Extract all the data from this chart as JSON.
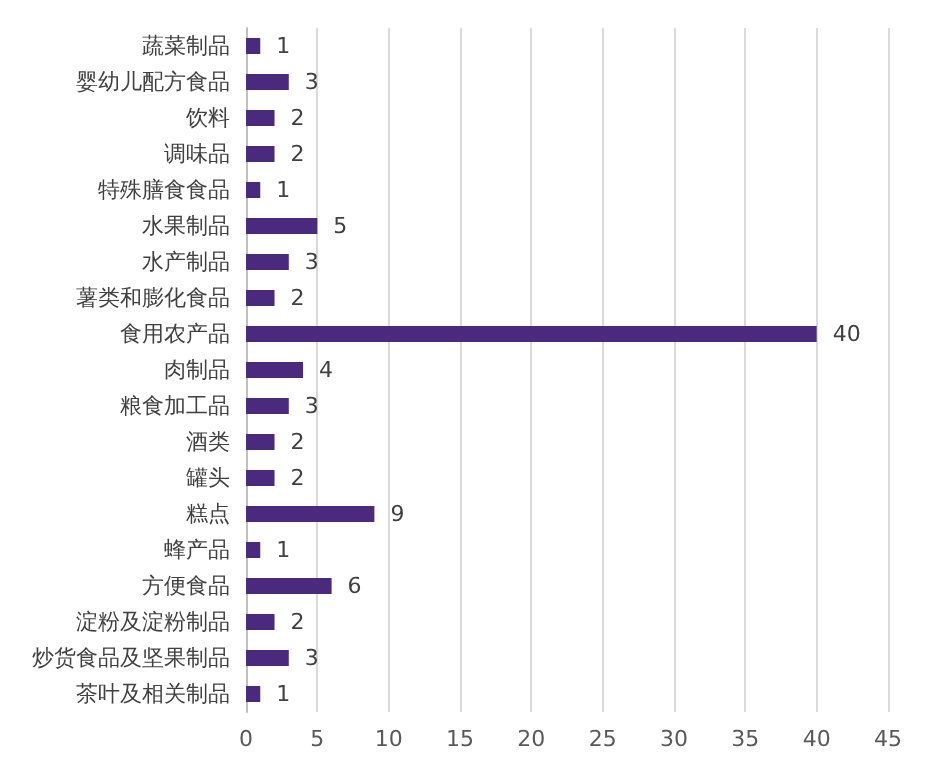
{
  "chart_data": {
    "type": "bar",
    "orientation": "horizontal",
    "categories": [
      "蔬菜制品",
      "婴幼儿配方食品",
      "饮料",
      "调味品",
      "特殊膳食食品",
      "水果制品",
      "水产制品",
      "薯类和膨化食品",
      "食用农产品",
      "肉制品",
      "粮食加工品",
      "酒类",
      "罐头",
      "糕点",
      "蜂产品",
      "方便食品",
      "淀粉及淀粉制品",
      "炒货食品及坚果制品",
      "茶叶及相关制品"
    ],
    "values": [
      1,
      3,
      2,
      2,
      1,
      5,
      3,
      2,
      40,
      4,
      3,
      2,
      2,
      9,
      1,
      6,
      2,
      3,
      1
    ],
    "color": "#4b2a7e",
    "xlim": [
      0,
      45
    ],
    "xticks": [
      0,
      5,
      10,
      15,
      20,
      25,
      30,
      35,
      40,
      45
    ],
    "grid": "x",
    "data_labels": true
  }
}
